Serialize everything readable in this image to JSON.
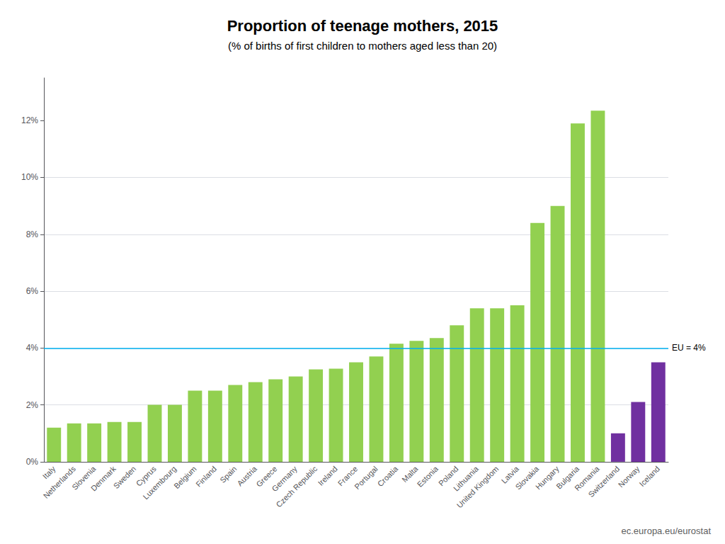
{
  "chart_data": {
    "type": "bar",
    "title": "Proportion of teenage mothers, 2015",
    "subtitle": "(% of births of first children to mothers aged less than 20)",
    "categories": [
      "Italy",
      "Netherlands",
      "Slovenia",
      "Denmark",
      "Sweden",
      "Cyprus",
      "Luxembourg",
      "Belgium",
      "Finland",
      "Spain",
      "Austria",
      "Greece",
      "Germany",
      "Czech Republic",
      "Ireland",
      "France",
      "Portugal",
      "Croatia",
      "Malta",
      "Estonia",
      "Poland",
      "Lithuania",
      "United Kingdom",
      "Latvia",
      "Slovakia",
      "Hungary",
      "Bulgaria",
      "Romania",
      "Switzerland",
      "Norway",
      "Iceland"
    ],
    "values": [
      1.2,
      1.35,
      1.35,
      1.4,
      1.4,
      2.0,
      2.0,
      2.5,
      2.5,
      2.7,
      2.8,
      2.9,
      3.0,
      3.25,
      3.27,
      3.5,
      3.7,
      4.15,
      4.25,
      4.35,
      4.8,
      5.4,
      5.4,
      5.5,
      8.4,
      9.0,
      11.9,
      12.35,
      1.0,
      2.1,
      3.5
    ],
    "colors": [
      "#92d050",
      "#92d050",
      "#92d050",
      "#92d050",
      "#92d050",
      "#92d050",
      "#92d050",
      "#92d050",
      "#92d050",
      "#92d050",
      "#92d050",
      "#92d050",
      "#92d050",
      "#92d050",
      "#92d050",
      "#92d050",
      "#92d050",
      "#92d050",
      "#92d050",
      "#92d050",
      "#92d050",
      "#92d050",
      "#92d050",
      "#92d050",
      "#92d050",
      "#92d050",
      "#92d050",
      "#92d050",
      "#7030a0",
      "#7030a0",
      "#7030a0"
    ],
    "hline": {
      "y": 4.0,
      "label": "EU = 4%",
      "color": "#00b0f0"
    },
    "ylim": [
      0,
      13.5
    ],
    "yticks": [
      {
        "value": 0,
        "label": "0%"
      },
      {
        "value": 2,
        "label": "2%"
      },
      {
        "value": 4,
        "label": "4%"
      },
      {
        "value": 6,
        "label": "6%"
      },
      {
        "value": 8,
        "label": "8%"
      },
      {
        "value": 10,
        "label": "10%"
      },
      {
        "value": 12,
        "label": "12%"
      }
    ],
    "grid": true,
    "annotations": [
      "ec.europa.eu/eurostat"
    ]
  }
}
